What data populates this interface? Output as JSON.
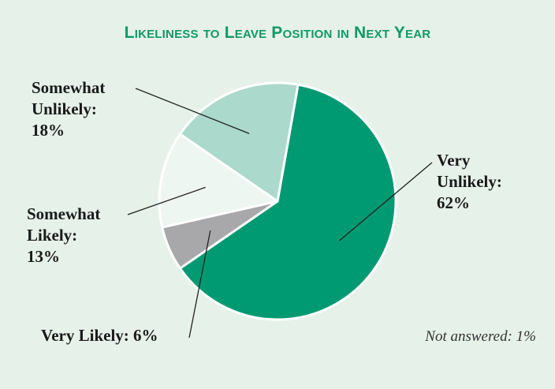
{
  "chart_data": {
    "type": "pie",
    "title": "Likeliness to Leave Position in Next Year",
    "slices": [
      {
        "label": "Very Unlikely",
        "value": 62,
        "color": "#009a72",
        "lines": [
          "Very",
          "Unlikely:",
          "62%"
        ]
      },
      {
        "label": "Very Likely",
        "value": 6,
        "color": "#a8a8ab",
        "lines": [
          "Very Likely: 6%"
        ]
      },
      {
        "label": "Somewhat Likely",
        "value": 13,
        "color": "#eef6f1",
        "lines": [
          "Somewhat",
          "Likely:",
          "13%"
        ]
      },
      {
        "label": "Somewhat Unlikely",
        "value": 18,
        "color": "#abd9cb",
        "lines": [
          "Somewhat",
          "Unlikely:",
          "18%"
        ]
      }
    ],
    "note": "Not answered: 1%",
    "legend": "none"
  }
}
